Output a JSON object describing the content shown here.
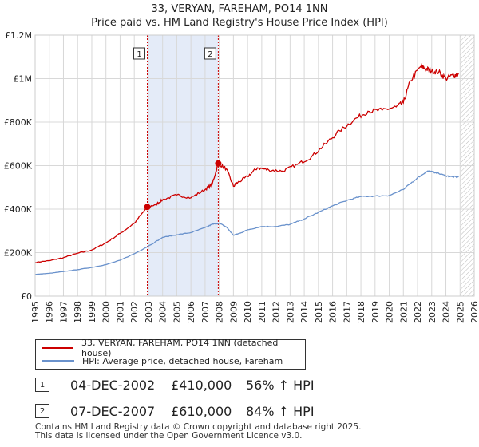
{
  "title": {
    "line1": "33, VERYAN, FAREHAM, PO14 1NN",
    "line2": "Price paid vs. HM Land Registry's House Price Index (HPI)"
  },
  "colors": {
    "property": "#cc0000",
    "hpi": "#6a92cc",
    "highlight": "#e4ebf8",
    "grid": "#d8d8d8",
    "marker_line": "#cc0000"
  },
  "chart_data": {
    "type": "line",
    "xlim": [
      1995,
      2026
    ],
    "ylim": [
      0,
      1200000
    ],
    "x_ticks": [
      "1995",
      "1996",
      "1997",
      "1998",
      "1999",
      "2000",
      "2001",
      "2002",
      "2003",
      "2004",
      "2005",
      "2006",
      "2007",
      "2008",
      "2009",
      "2010",
      "2011",
      "2012",
      "2013",
      "2014",
      "2015",
      "2016",
      "2017",
      "2018",
      "2019",
      "2020",
      "2021",
      "2022",
      "2023",
      "2024",
      "2025",
      "2026"
    ],
    "y_ticks": [
      {
        "value": 0,
        "label": "£0"
      },
      {
        "value": 200000,
        "label": "£200K"
      },
      {
        "value": 400000,
        "label": "£400K"
      },
      {
        "value": 600000,
        "label": "£600K"
      },
      {
        "value": 800000,
        "label": "£800K"
      },
      {
        "value": 1000000,
        "label": "£1M"
      },
      {
        "value": 1200000,
        "label": "£1.2M"
      }
    ],
    "highlight_range": [
      2002.92,
      2007.93
    ],
    "future_from": 2025.0,
    "markers": [
      {
        "label": "1",
        "x": 2002.92,
        "y": 410000
      },
      {
        "label": "2",
        "x": 2007.93,
        "y": 610000
      }
    ],
    "series": [
      {
        "name": "33, VERYAN, FAREHAM, PO14 1NN (detached house)",
        "color": "#cc0000",
        "x": [
          1995.0,
          1996.0,
          1997.0,
          1998.0,
          1999.0,
          2000.0,
          2001.0,
          2002.0,
          2002.92,
          2003.5,
          2004.0,
          2005.0,
          2006.0,
          2007.0,
          2007.5,
          2007.93,
          2008.5,
          2009.0,
          2009.3,
          2010.0,
          2010.7,
          2011.5,
          2012.5,
          2013.5,
          2014.5,
          2015.5,
          2016.5,
          2017.5,
          2018.5,
          2019.5,
          2020.5,
          2021.0,
          2021.5,
          2022.2,
          2022.6,
          2023.0,
          2023.5,
          2024.0,
          2024.5,
          2024.9
        ],
        "y": [
          155000,
          163000,
          177000,
          197000,
          212000,
          245000,
          288000,
          335000,
          410000,
          420000,
          443000,
          465000,
          452000,
          490000,
          515000,
          610000,
          585000,
          505000,
          522000,
          550000,
          590000,
          580000,
          575000,
          605000,
          640000,
          700000,
          760000,
          810000,
          850000,
          855000,
          870000,
          890000,
          990000,
          1055000,
          1045000,
          1035000,
          1030000,
          1000000,
          1015000,
          1020000
        ]
      },
      {
        "name": "HPI: Average price, detached house, Fareham",
        "color": "#6a92cc",
        "x": [
          1995.0,
          1996.0,
          1997.0,
          1998.0,
          1999.0,
          2000.0,
          2001.0,
          2002.0,
          2003.0,
          2004.0,
          2005.0,
          2006.0,
          2007.0,
          2007.5,
          2008.0,
          2008.5,
          2009.0,
          2009.5,
          2010.0,
          2011.0,
          2012.0,
          2013.0,
          2014.0,
          2015.0,
          2016.0,
          2017.0,
          2018.0,
          2019.0,
          2020.0,
          2021.0,
          2022.0,
          2022.7,
          2023.3,
          2024.0,
          2024.5,
          2024.9
        ],
        "y": [
          100000,
          105000,
          113000,
          122000,
          132000,
          145000,
          165000,
          195000,
          230000,
          270000,
          282000,
          292000,
          315000,
          330000,
          335000,
          318000,
          280000,
          290000,
          305000,
          320000,
          320000,
          330000,
          355000,
          385000,
          415000,
          440000,
          458000,
          460000,
          463000,
          490000,
          545000,
          575000,
          568000,
          553000,
          548000,
          550000
        ]
      }
    ]
  },
  "legend": {
    "items": [
      {
        "label": "33, VERYAN, FAREHAM, PO14 1NN (detached house)",
        "color": "#cc0000"
      },
      {
        "label": "HPI: Average price, detached house, Fareham",
        "color": "#6a92cc"
      }
    ]
  },
  "sales": [
    {
      "num": "1",
      "date": "04-DEC-2002",
      "price": "£410,000",
      "hpi": "56% ↑ HPI"
    },
    {
      "num": "2",
      "date": "07-DEC-2007",
      "price": "£610,000",
      "hpi": "84% ↑ HPI"
    }
  ],
  "footer": {
    "line1": "Contains HM Land Registry data © Crown copyright and database right 2025.",
    "line2": "This data is licensed under the Open Government Licence v3.0."
  }
}
